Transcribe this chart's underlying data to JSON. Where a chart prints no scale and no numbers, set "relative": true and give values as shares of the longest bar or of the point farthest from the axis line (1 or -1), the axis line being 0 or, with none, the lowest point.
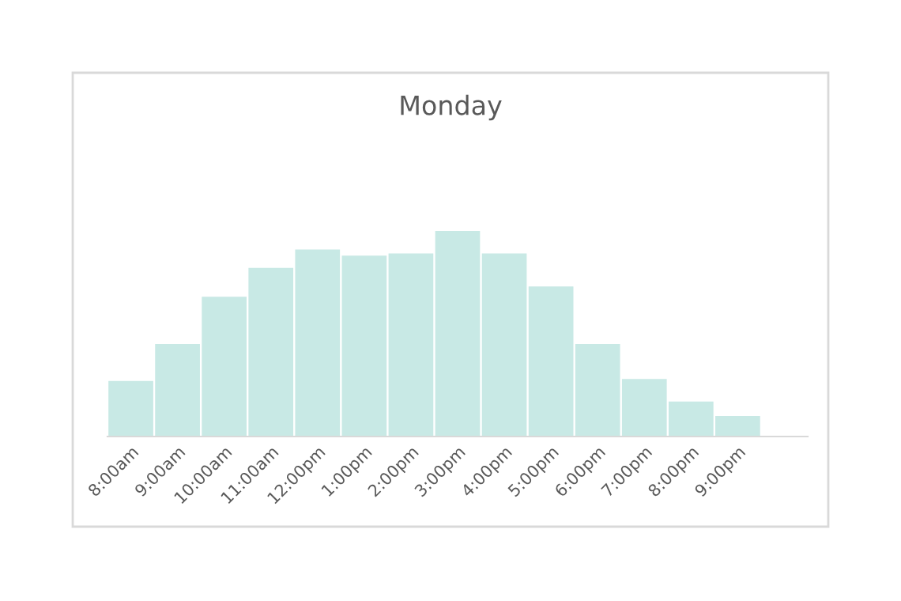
{
  "chart_data": {
    "type": "bar",
    "title": "Monday",
    "relative": true,
    "categories": [
      "8:00am",
      "9:00am",
      "10:00am",
      "11:00am",
      "12:00pm",
      "1:00pm",
      "2:00pm",
      "3:00pm",
      "4:00pm",
      "5:00pm",
      "6:00pm",
      "7:00pm",
      "8:00pm",
      "9:00pm",
      null
    ],
    "values": [
      0.27,
      0.45,
      0.68,
      0.82,
      0.91,
      0.88,
      0.89,
      1,
      0.89,
      0.73,
      0.45,
      0.28,
      0.17,
      0.1,
      0
    ],
    "color": "#c8e9e5",
    "grid": false,
    "legend": false
  }
}
